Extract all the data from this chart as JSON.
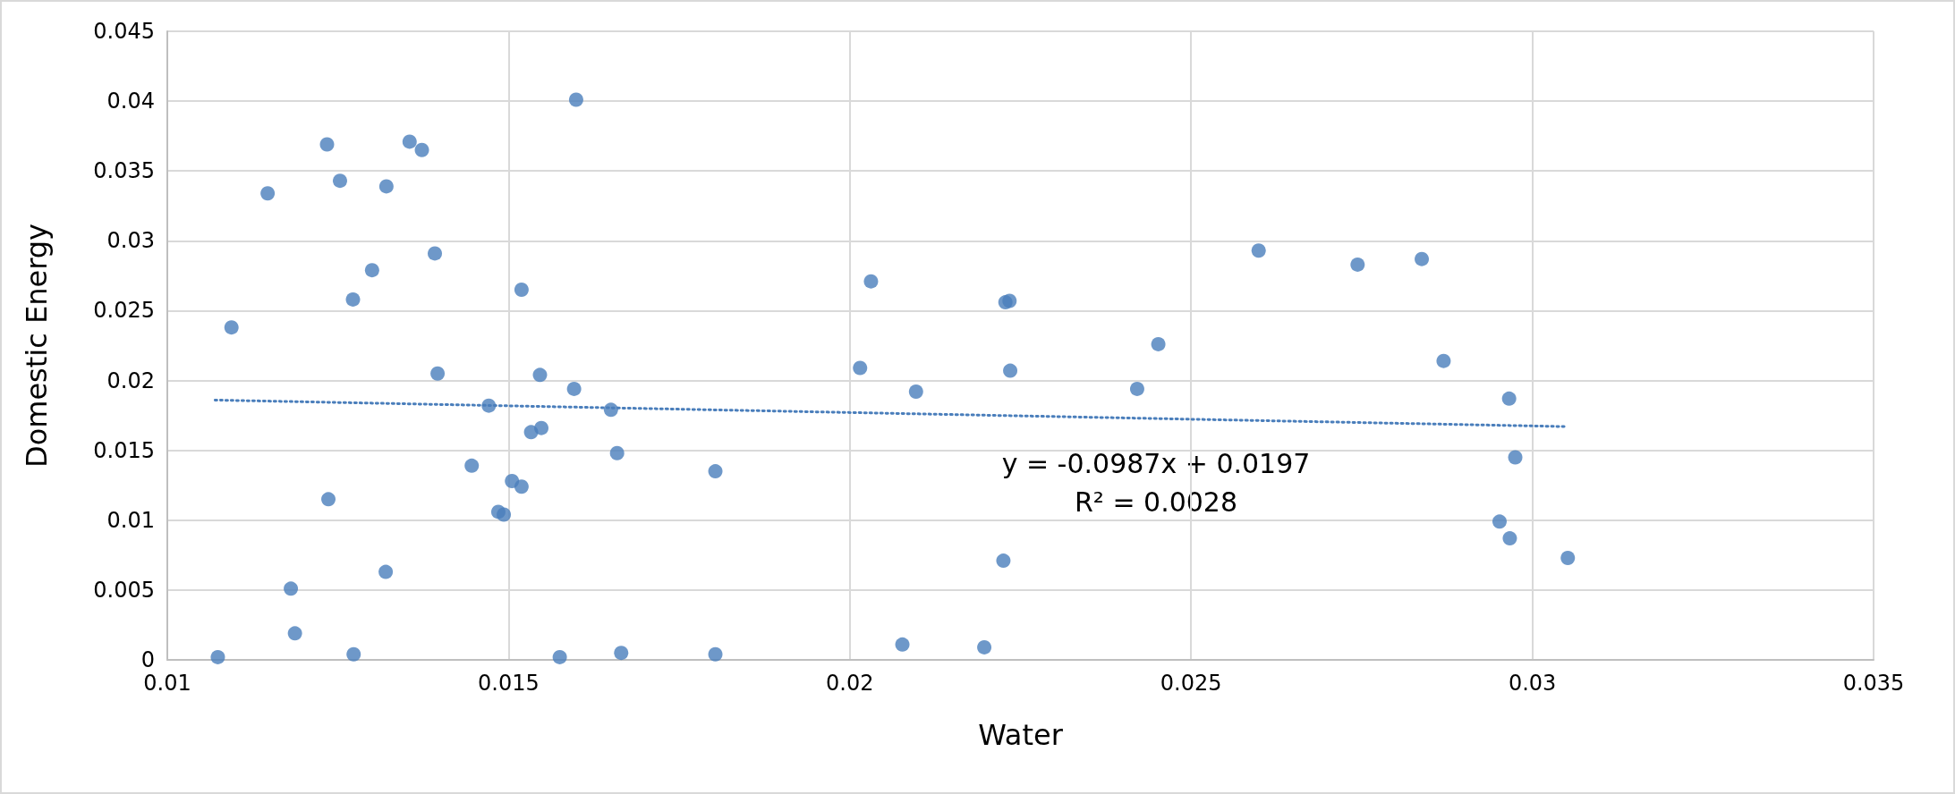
{
  "chart_data": {
    "type": "scatter",
    "xlabel": "Water",
    "ylabel": "Domestic Energy",
    "xlim": [
      0.01,
      0.035
    ],
    "xticks": [
      0.01,
      0.015,
      0.02,
      0.025,
      0.03,
      0.035
    ],
    "ylim": [
      0,
      0.045
    ],
    "yticks": [
      0,
      0.005,
      0.01,
      0.015,
      0.02,
      0.025,
      0.03,
      0.035,
      0.04,
      0.045
    ],
    "grid": true,
    "marker": "circle",
    "annotations": [
      "y = -0.0987x + 0.0197",
      "R² = 0.0028"
    ],
    "series": [
      {
        "color": "#4a7ebb",
        "x": [
          0.01074,
          0.01094,
          0.01147,
          0.01181,
          0.01187,
          0.01234,
          0.01236,
          0.01253,
          0.01272,
          0.01273,
          0.013,
          0.01321,
          0.0132,
          0.01355,
          0.01373,
          0.01392,
          0.01396,
          0.01446,
          0.01471,
          0.01485,
          0.01493,
          0.01505,
          0.01519,
          0.01519,
          0.01533,
          0.01546,
          0.01548,
          0.01575,
          0.01599,
          0.01596,
          0.0165,
          0.01659,
          0.01665,
          0.01803,
          0.01803,
          0.02015,
          0.02031,
          0.02077,
          0.02097,
          0.02197,
          0.02225,
          0.02228,
          0.02234,
          0.02235,
          0.02421,
          0.02452,
          0.02599,
          0.02744,
          0.02838,
          0.0287,
          0.02966,
          0.02975,
          0.02952,
          0.02967,
          0.03052
        ],
        "values": [
          0.0002,
          0.0238,
          0.0334,
          0.0051,
          0.0019,
          0.0369,
          0.0115,
          0.0343,
          0.0258,
          0.0004,
          0.0279,
          0.0339,
          0.0063,
          0.0371,
          0.0365,
          0.0291,
          0.0205,
          0.0139,
          0.0182,
          0.0106,
          0.0104,
          0.0128,
          0.0265,
          0.0124,
          0.0163,
          0.0204,
          0.0166,
          0.0002,
          0.0401,
          0.0194,
          0.0179,
          0.0148,
          0.0005,
          0.0135,
          0.0004,
          0.0209,
          0.0271,
          0.0011,
          0.0192,
          0.0009,
          0.0071,
          0.0256,
          0.0257,
          0.0207,
          0.0194,
          0.0226,
          0.0293,
          0.0283,
          0.0287,
          0.0214,
          0.0187,
          0.0145,
          0.0099,
          0.0087,
          0.0073
        ]
      },
      {
        "type": "line",
        "color": "#4a7ebb",
        "line_style": "dotted",
        "marker": "none",
        "x": [
          0.0107,
          0.0305
        ],
        "values": [
          0.0186,
          0.0167
        ]
      }
    ]
  }
}
